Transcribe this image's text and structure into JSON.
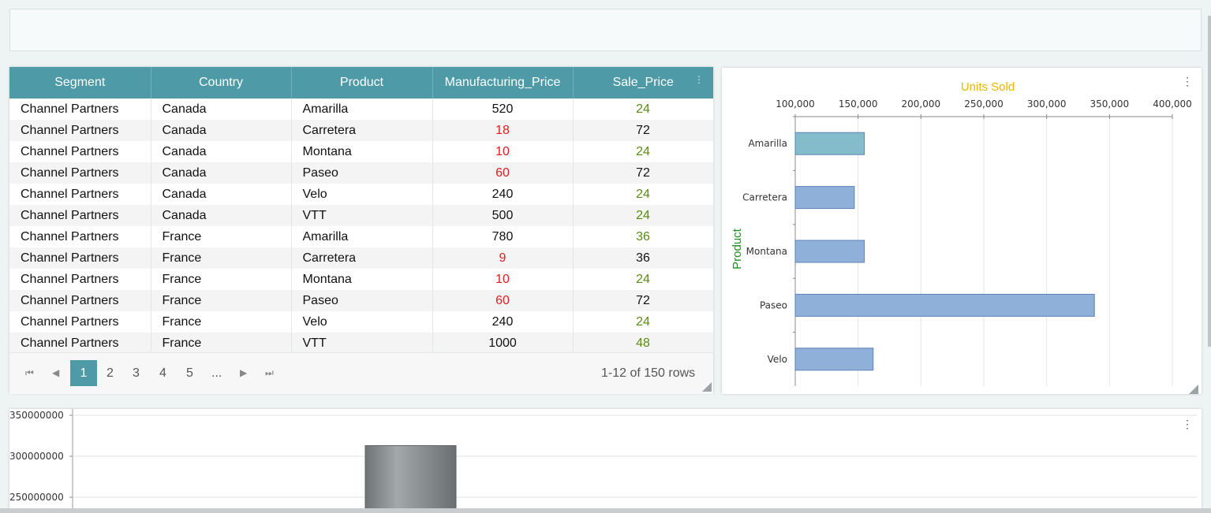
{
  "grid": {
    "columns": [
      "Segment",
      "Country",
      "Product",
      "Manufacturing_Price",
      "Sale_Price"
    ],
    "rows": [
      [
        "Channel Partners",
        "Canada",
        "Amarilla",
        "520",
        "24"
      ],
      [
        "Channel Partners",
        "Canada",
        "Carretera",
        "18",
        "72"
      ],
      [
        "Channel Partners",
        "Canada",
        "Montana",
        "10",
        "24"
      ],
      [
        "Channel Partners",
        "Canada",
        "Paseo",
        "60",
        "72"
      ],
      [
        "Channel Partners",
        "Canada",
        "Velo",
        "240",
        "24"
      ],
      [
        "Channel Partners",
        "Canada",
        "VTT",
        "500",
        "24"
      ],
      [
        "Channel Partners",
        "France",
        "Amarilla",
        "780",
        "36"
      ],
      [
        "Channel Partners",
        "France",
        "Carretera",
        "9",
        "36"
      ],
      [
        "Channel Partners",
        "France",
        "Montana",
        "10",
        "24"
      ],
      [
        "Channel Partners",
        "France",
        "Paseo",
        "60",
        "72"
      ],
      [
        "Channel Partners",
        "France",
        "Velo",
        "240",
        "24"
      ],
      [
        "Channel Partners",
        "France",
        "VTT",
        "1000",
        "48"
      ]
    ],
    "pager": {
      "pages": [
        "1",
        "2",
        "3",
        "4",
        "5",
        "..."
      ],
      "current": "1",
      "summary": "1-12 of 150 rows"
    }
  },
  "colors": {
    "header": "#4e9aa6",
    "low_value": "#e01b1b",
    "high_value": "#5a8a16",
    "bar": "#8fb0d8",
    "bar_highlight": "#84bccb",
    "chart_title": "#f0b400",
    "axis_title": "#1e8f1e",
    "column": "#8a8f91"
  },
  "icons": {
    "first": "first-page-icon",
    "prev": "prev-page-icon",
    "next": "next-page-icon",
    "last": "last-page-icon",
    "menu": "kebab-menu-icon"
  },
  "chart_data": [
    {
      "type": "bar",
      "orientation": "horizontal",
      "title": "Units Sold",
      "ylabel": "Product",
      "categories": [
        "Amarilla",
        "Carretera",
        "Montana",
        "Paseo",
        "Velo"
      ],
      "values": [
        155000,
        147000,
        155000,
        338000,
        162000
      ],
      "xlim": [
        100000,
        400000
      ],
      "x_ticks": [
        "100,000",
        "150,000",
        "200,000",
        "250,000",
        "300,000",
        "350,000",
        "400,000"
      ],
      "grid": true
    },
    {
      "type": "bar",
      "y_ticks": [
        "350000000",
        "300000000",
        "250000000"
      ],
      "ylim": [
        250000000,
        350000000
      ],
      "values": [
        313000000
      ],
      "grid": true
    }
  ]
}
